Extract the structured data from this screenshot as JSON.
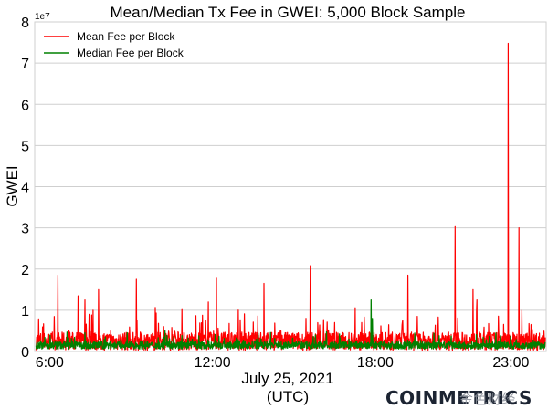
{
  "chart_data": {
    "type": "line",
    "title": "Mean/Median Tx Fee in GWEI: 5,000 Block Sample",
    "ylabel": "GWEI",
    "xlabel_line1": "July 25, 2021",
    "xlabel_line2": "(UTC)",
    "y_exponent": "1e7",
    "ylim": [
      0,
      8
    ],
    "yticks": [
      "0",
      "1",
      "2",
      "3",
      "4",
      "5",
      "6",
      "7",
      "8"
    ],
    "xlim": [
      5.45,
      24.3
    ],
    "xticks": [
      {
        "value": 6,
        "label": "6:00"
      },
      {
        "value": 12,
        "label": "12:00"
      },
      {
        "value": 18,
        "label": "18:00"
      },
      {
        "value": 23,
        "label": "23:00"
      }
    ],
    "grid": "horizontal",
    "legend_position": "top-left",
    "series": [
      {
        "name": "Mean Fee per Block",
        "color": "#ff0000",
        "baseline": 0.25,
        "noise": 0.22,
        "spikes": [
          [
            6.3,
            1.85
          ],
          [
            7.05,
            1.35
          ],
          [
            7.3,
            1.25
          ],
          [
            7.45,
            0.9
          ],
          [
            7.6,
            1.0
          ],
          [
            7.8,
            1.5
          ],
          [
            9.2,
            1.75
          ],
          [
            11.75,
            0.75
          ],
          [
            11.85,
            1.2
          ],
          [
            12.15,
            1.8
          ],
          [
            13.9,
            1.65
          ],
          [
            15.6,
            2.08
          ],
          [
            16.5,
            0.7
          ],
          [
            17.5,
            0.7
          ],
          [
            18.5,
            0.65
          ],
          [
            19.0,
            0.7
          ],
          [
            19.2,
            1.85
          ],
          [
            20.95,
            3.03
          ],
          [
            21.6,
            1.5
          ],
          [
            21.75,
            1.25
          ],
          [
            22.9,
            7.48
          ],
          [
            23.3,
            3.0
          ],
          [
            23.4,
            1.0
          ]
        ]
      },
      {
        "name": "Median Fee per Block",
        "color": "#008000",
        "baseline": 0.15,
        "noise": 0.09,
        "spikes": [
          [
            17.85,
            1.25
          ],
          [
            17.9,
            0.8
          ],
          [
            7.3,
            0.45
          ],
          [
            15.8,
            0.4
          ]
        ]
      }
    ]
  },
  "watermark": {
    "brand": "COINMETRICS",
    "cn_text": "金色财经"
  }
}
